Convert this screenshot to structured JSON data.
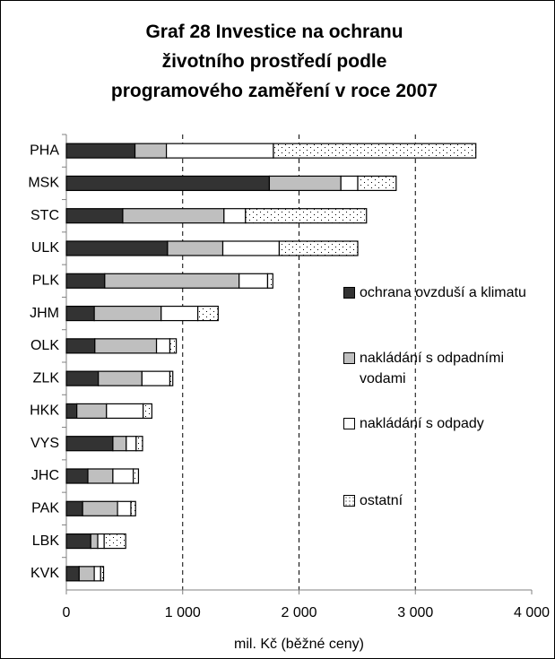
{
  "chart_data": {
    "type": "stacked-barh",
    "title": "Graf 28 Investice na ochranu životního prostředí podle programového zaměření v roce 2007",
    "xlabel": "mil. Kč (běžné ceny)",
    "categories": [
      "PHA",
      "MSK",
      "STC",
      "ULK",
      "PLK",
      "JHM",
      "OLK",
      "ZLK",
      "HKK",
      "VYS",
      "JHC",
      "PAK",
      "LBK",
      "KVK"
    ],
    "series": [
      {
        "name": "ochrana ovzduší a klimatu",
        "color": "#333333",
        "values": [
          590,
          1745,
          485,
          870,
          330,
          240,
          245,
          275,
          90,
          400,
          185,
          140,
          210,
          110
        ]
      },
      {
        "name": "nakládání s odpadními vodami",
        "color": "#bfbfbf",
        "values": [
          270,
          615,
          870,
          475,
          1155,
          575,
          530,
          375,
          255,
          115,
          215,
          300,
          60,
          130
        ]
      },
      {
        "name": "nakládání s odpady",
        "color": "#ffffff",
        "values": [
          920,
          145,
          185,
          485,
          245,
          315,
          115,
          240,
          315,
          85,
          175,
          115,
          55,
          55
        ]
      },
      {
        "name": "ostatní",
        "color": "#ffffff",
        "pattern": "dots",
        "values": [
          1740,
          330,
          1040,
          675,
          45,
          175,
          55,
          25,
          75,
          55,
          45,
          40,
          185,
          25
        ]
      }
    ],
    "xlim": [
      0,
      4000
    ],
    "xticks": [
      0,
      {
        "value": 1000,
        "label": "1 000"
      },
      {
        "value": 2000,
        "label": "2 000"
      },
      {
        "value": 3000,
        "label": "3 000"
      },
      {
        "value": 4000,
        "label": "4 000"
      }
    ],
    "grid": true,
    "legend": "right"
  }
}
